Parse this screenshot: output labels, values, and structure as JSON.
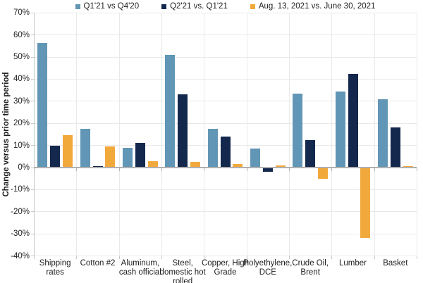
{
  "chart_data": {
    "type": "bar",
    "title": "",
    "ylabel": "Change versus prior time period",
    "ylim": [
      -40,
      70
    ],
    "ytick_step": 10,
    "ytick_suffix": "%",
    "yticks": [
      70,
      60,
      50,
      40,
      30,
      20,
      10,
      0,
      -10,
      -20,
      -30,
      -40
    ],
    "grid": true,
    "legend_position": "top",
    "categories": [
      "Shipping\nrates",
      "Cotton #2",
      "Aluminum,\ncash official",
      "Steel,\ndomestic hot\nrolled",
      "Copper, High\nGrade",
      "Polyethylene,\nDCE",
      "Crude Oil,\nBrent",
      "Lumber",
      "Basket"
    ],
    "series": [
      {
        "name": "Q1'21 vs Q4'20",
        "color": "#6296b6",
        "values": [
          56.5,
          17.5,
          9,
          51,
          17.5,
          8.5,
          33.5,
          34.5,
          31
        ]
      },
      {
        "name": "Q2'21 vs. Q1'21",
        "color": "#14284e",
        "values": [
          10,
          0.5,
          11,
          33,
          14,
          -2,
          12.5,
          42.5,
          18
        ]
      },
      {
        "name": "Aug. 13, 2021 vs. June 30, 2021",
        "color": "#f2a93c",
        "values": [
          14.5,
          9.5,
          3,
          2.5,
          1.5,
          1,
          -5,
          -32,
          0.5
        ]
      }
    ],
    "colors": {
      "grid": "#e9e9e9",
      "zero_line": "#b0b0b0",
      "axis": "#c6c6c6",
      "tick_text": "#222222"
    }
  }
}
